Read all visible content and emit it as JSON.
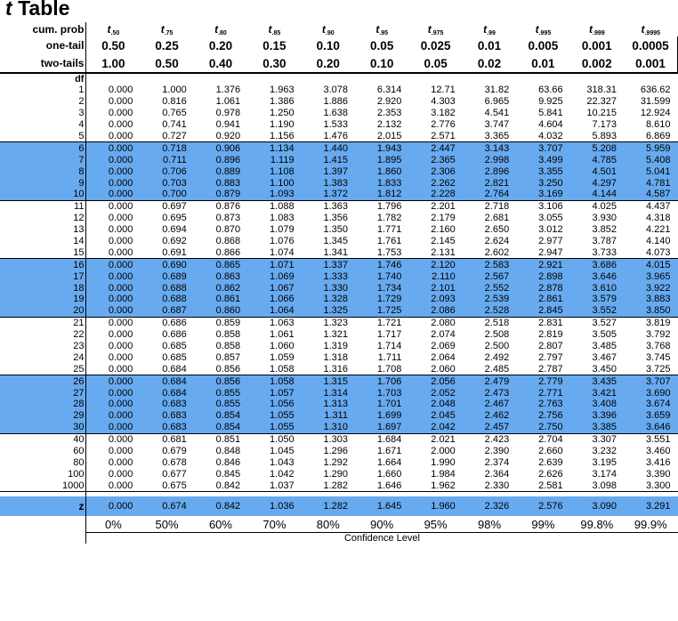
{
  "title": {
    "symbol": "t",
    "text": "Table"
  },
  "row_labels": {
    "cum_prob": "cum. prob",
    "one_tail": "one-tail",
    "two_tails": "two-tails",
    "df": "df",
    "z": "z"
  },
  "header": {
    "t_symbol": "t",
    "t_subscripts": [
      ".50",
      ".75",
      ".80",
      ".85",
      ".90",
      ".95",
      ".975",
      ".99",
      ".995",
      ".999",
      ".9995"
    ],
    "one_tail": [
      "0.50",
      "0.25",
      "0.20",
      "0.15",
      "0.10",
      "0.05",
      "0.025",
      "0.01",
      "0.005",
      "0.001",
      "0.0005"
    ],
    "two_tails": [
      "1.00",
      "0.50",
      "0.40",
      "0.30",
      "0.20",
      "0.10",
      "0.05",
      "0.02",
      "0.01",
      "0.002",
      "0.001"
    ]
  },
  "rows": [
    {
      "df": "1",
      "values": [
        "0.000",
        "1.000",
        "1.376",
        "1.963",
        "3.078",
        "6.314",
        "12.71",
        "31.82",
        "63.66",
        "318.31",
        "636.62"
      ]
    },
    {
      "df": "2",
      "values": [
        "0.000",
        "0.816",
        "1.061",
        "1.386",
        "1.886",
        "2.920",
        "4.303",
        "6.965",
        "9.925",
        "22.327",
        "31.599"
      ]
    },
    {
      "df": "3",
      "values": [
        "0.000",
        "0.765",
        "0.978",
        "1.250",
        "1.638",
        "2.353",
        "3.182",
        "4.541",
        "5.841",
        "10.215",
        "12.924"
      ]
    },
    {
      "df": "4",
      "values": [
        "0.000",
        "0.741",
        "0.941",
        "1.190",
        "1.533",
        "2.132",
        "2.776",
        "3.747",
        "4.604",
        "7.173",
        "8.610"
      ]
    },
    {
      "df": "5",
      "values": [
        "0.000",
        "0.727",
        "0.920",
        "1.156",
        "1.476",
        "2.015",
        "2.571",
        "3.365",
        "4.032",
        "5.893",
        "6.869"
      ]
    },
    {
      "df": "6",
      "values": [
        "0.000",
        "0.718",
        "0.906",
        "1.134",
        "1.440",
        "1.943",
        "2.447",
        "3.143",
        "3.707",
        "5.208",
        "5.959"
      ]
    },
    {
      "df": "7",
      "values": [
        "0.000",
        "0.711",
        "0.896",
        "1.119",
        "1.415",
        "1.895",
        "2.365",
        "2.998",
        "3.499",
        "4.785",
        "5.408"
      ]
    },
    {
      "df": "8",
      "values": [
        "0.000",
        "0.706",
        "0.889",
        "1.108",
        "1.397",
        "1.860",
        "2.306",
        "2.896",
        "3.355",
        "4.501",
        "5.041"
      ]
    },
    {
      "df": "9",
      "values": [
        "0.000",
        "0.703",
        "0.883",
        "1.100",
        "1.383",
        "1.833",
        "2.262",
        "2.821",
        "3.250",
        "4.297",
        "4.781"
      ]
    },
    {
      "df": "10",
      "values": [
        "0.000",
        "0.700",
        "0.879",
        "1.093",
        "1.372",
        "1.812",
        "2.228",
        "2.764",
        "3.169",
        "4.144",
        "4.587"
      ]
    },
    {
      "df": "11",
      "values": [
        "0.000",
        "0.697",
        "0.876",
        "1.088",
        "1.363",
        "1.796",
        "2.201",
        "2.718",
        "3.106",
        "4.025",
        "4.437"
      ]
    },
    {
      "df": "12",
      "values": [
        "0.000",
        "0.695",
        "0.873",
        "1.083",
        "1.356",
        "1.782",
        "2.179",
        "2.681",
        "3.055",
        "3.930",
        "4.318"
      ]
    },
    {
      "df": "13",
      "values": [
        "0.000",
        "0.694",
        "0.870",
        "1.079",
        "1.350",
        "1.771",
        "2.160",
        "2.650",
        "3.012",
        "3.852",
        "4.221"
      ]
    },
    {
      "df": "14",
      "values": [
        "0.000",
        "0.692",
        "0.868",
        "1.076",
        "1.345",
        "1.761",
        "2.145",
        "2.624",
        "2.977",
        "3.787",
        "4.140"
      ]
    },
    {
      "df": "15",
      "values": [
        "0.000",
        "0.691",
        "0.866",
        "1.074",
        "1.341",
        "1.753",
        "2.131",
        "2.602",
        "2.947",
        "3.733",
        "4.073"
      ]
    },
    {
      "df": "16",
      "values": [
        "0.000",
        "0.690",
        "0.865",
        "1.071",
        "1.337",
        "1.746",
        "2.120",
        "2.583",
        "2.921",
        "3.686",
        "4.015"
      ]
    },
    {
      "df": "17",
      "values": [
        "0.000",
        "0.689",
        "0.863",
        "1.069",
        "1.333",
        "1.740",
        "2.110",
        "2.567",
        "2.898",
        "3.646",
        "3.965"
      ]
    },
    {
      "df": "18",
      "values": [
        "0.000",
        "0.688",
        "0.862",
        "1.067",
        "1.330",
        "1.734",
        "2.101",
        "2.552",
        "2.878",
        "3.610",
        "3.922"
      ]
    },
    {
      "df": "19",
      "values": [
        "0.000",
        "0.688",
        "0.861",
        "1.066",
        "1.328",
        "1.729",
        "2.093",
        "2.539",
        "2.861",
        "3.579",
        "3.883"
      ]
    },
    {
      "df": "20",
      "values": [
        "0.000",
        "0.687",
        "0.860",
        "1.064",
        "1.325",
        "1.725",
        "2.086",
        "2.528",
        "2.845",
        "3.552",
        "3.850"
      ]
    },
    {
      "df": "21",
      "values": [
        "0.000",
        "0.686",
        "0.859",
        "1.063",
        "1.323",
        "1.721",
        "2.080",
        "2.518",
        "2.831",
        "3.527",
        "3.819"
      ]
    },
    {
      "df": "22",
      "values": [
        "0.000",
        "0.686",
        "0.858",
        "1.061",
        "1.321",
        "1.717",
        "2.074",
        "2.508",
        "2.819",
        "3.505",
        "3.792"
      ]
    },
    {
      "df": "23",
      "values": [
        "0.000",
        "0.685",
        "0.858",
        "1.060",
        "1.319",
        "1.714",
        "2.069",
        "2.500",
        "2.807",
        "3.485",
        "3.768"
      ]
    },
    {
      "df": "24",
      "values": [
        "0.000",
        "0.685",
        "0.857",
        "1.059",
        "1.318",
        "1.711",
        "2.064",
        "2.492",
        "2.797",
        "3.467",
        "3.745"
      ]
    },
    {
      "df": "25",
      "values": [
        "0.000",
        "0.684",
        "0.856",
        "1.058",
        "1.316",
        "1.708",
        "2.060",
        "2.485",
        "2.787",
        "3.450",
        "3.725"
      ]
    },
    {
      "df": "26",
      "values": [
        "0.000",
        "0.684",
        "0.856",
        "1.058",
        "1.315",
        "1.706",
        "2.056",
        "2.479",
        "2.779",
        "3.435",
        "3.707"
      ]
    },
    {
      "df": "27",
      "values": [
        "0.000",
        "0.684",
        "0.855",
        "1.057",
        "1.314",
        "1.703",
        "2.052",
        "2.473",
        "2.771",
        "3.421",
        "3.690"
      ]
    },
    {
      "df": "28",
      "values": [
        "0.000",
        "0.683",
        "0.855",
        "1.056",
        "1.313",
        "1.701",
        "2.048",
        "2.467",
        "2.763",
        "3.408",
        "3.674"
      ]
    },
    {
      "df": "29",
      "values": [
        "0.000",
        "0.683",
        "0.854",
        "1.055",
        "1.311",
        "1.699",
        "2.045",
        "2.462",
        "2.756",
        "3.396",
        "3.659"
      ]
    },
    {
      "df": "30",
      "values": [
        "0.000",
        "0.683",
        "0.854",
        "1.055",
        "1.310",
        "1.697",
        "2.042",
        "2.457",
        "2.750",
        "3.385",
        "3.646"
      ]
    },
    {
      "df": "40",
      "values": [
        "0.000",
        "0.681",
        "0.851",
        "1.050",
        "1.303",
        "1.684",
        "2.021",
        "2.423",
        "2.704",
        "3.307",
        "3.551"
      ]
    },
    {
      "df": "60",
      "values": [
        "0.000",
        "0.679",
        "0.848",
        "1.045",
        "1.296",
        "1.671",
        "2.000",
        "2.390",
        "2.660",
        "3.232",
        "3.460"
      ]
    },
    {
      "df": "80",
      "values": [
        "0.000",
        "0.678",
        "0.846",
        "1.043",
        "1.292",
        "1.664",
        "1.990",
        "2.374",
        "2.639",
        "3.195",
        "3.416"
      ]
    },
    {
      "df": "100",
      "values": [
        "0.000",
        "0.677",
        "0.845",
        "1.042",
        "1.290",
        "1.660",
        "1.984",
        "2.364",
        "2.626",
        "3.174",
        "3.390"
      ]
    },
    {
      "df": "1000",
      "values": [
        "0.000",
        "0.675",
        "0.842",
        "1.037",
        "1.282",
        "1.646",
        "1.962",
        "2.330",
        "2.581",
        "3.098",
        "3.300"
      ]
    }
  ],
  "z_row": [
    "0.000",
    "0.674",
    "0.842",
    "1.036",
    "1.282",
    "1.645",
    "1.960",
    "2.326",
    "2.576",
    "3.090",
    "3.291"
  ],
  "confidence": [
    "0%",
    "50%",
    "60%",
    "70%",
    "80%",
    "90%",
    "95%",
    "98%",
    "99%",
    "99.8%",
    "99.9%"
  ],
  "footer_label": "Confidence Level",
  "colors": {
    "band": "#67aaf0",
    "text": "#000000",
    "background": "#ffffff"
  }
}
